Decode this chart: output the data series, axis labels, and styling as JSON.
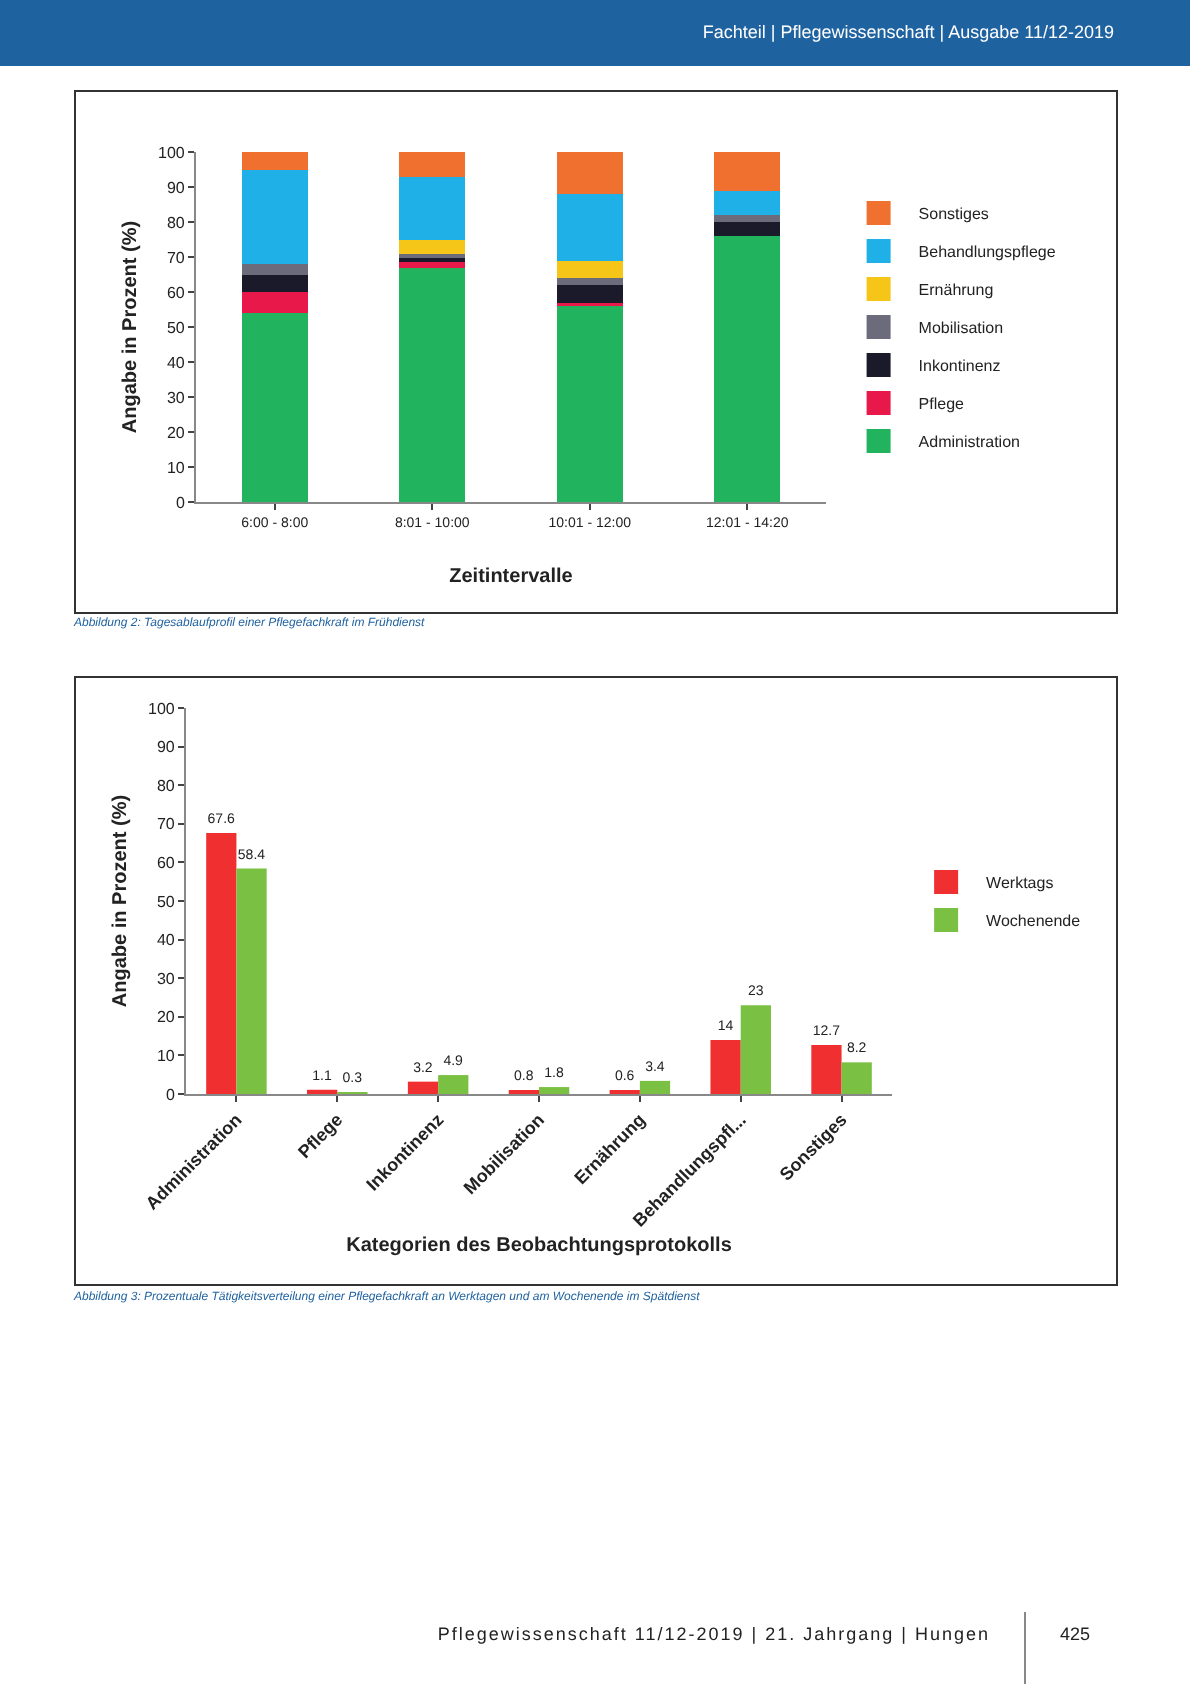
{
  "chart_data": [
    {
      "type": "bar",
      "stacked": true,
      "xlabel": "Zeitintervalle",
      "ylabel": "Angabe in Prozent (%)",
      "categories": [
        "6:00 - 8:00",
        "8:01 - 10:00",
        "10:01 - 12:00",
        "12:01 - 14:20"
      ],
      "series": [
        {
          "name": "Administration",
          "color": "#22b35e",
          "values": [
            54,
            67,
            56,
            76
          ]
        },
        {
          "name": "Pflege",
          "color": "#e8194a",
          "values": [
            6,
            2,
            1,
            0
          ]
        },
        {
          "name": "Inkontinenz",
          "color": "#1a1a2a",
          "values": [
            5,
            1,
            5,
            4
          ]
        },
        {
          "name": "Mobilisation",
          "color": "#6b6b7b",
          "values": [
            3,
            1,
            2,
            2
          ]
        },
        {
          "name": "Ernährung",
          "color": "#f5c518",
          "values": [
            0,
            4,
            5,
            0
          ]
        },
        {
          "name": "Behandlungspflege",
          "color": "#1fb0e8",
          "values": [
            27,
            18,
            19,
            7
          ]
        },
        {
          "name": "Sonstiges",
          "color": "#f07030",
          "values": [
            5,
            7,
            12,
            11
          ]
        }
      ],
      "ylim": [
        0,
        100
      ],
      "yticks": [
        0,
        10,
        20,
        30,
        40,
        50,
        60,
        70,
        80,
        90,
        100
      ],
      "grid": false,
      "legend": "right",
      "annotations": [
        "Fachteil | Pflegewissenschaft | Ausgabe 11/12-2019",
        "Abbildung 2: Tagesablaufprofil einer Pflegefachkraft im Frühdienst"
      ]
    },
    {
      "type": "bar",
      "xlabel": "Kategorien des Beobachtungsprotokolls",
      "ylabel": "Angabe in Prozent (%)",
      "categories": [
        "Administration",
        "Pflege",
        "Inkontinenz",
        "Mobilisation",
        "Ernährung",
        "Behandlungspfl...",
        "Sonstiges"
      ],
      "series": [
        {
          "name": "Werktags",
          "color": "#f03030",
          "values": [
            67.6,
            1.1,
            3.2,
            0.8,
            0.6,
            14,
            12.7
          ]
        },
        {
          "name": "Wochenende",
          "color": "#7ac143",
          "values": [
            58.4,
            0.3,
            4.9,
            1.8,
            3.4,
            23,
            8.2
          ]
        }
      ],
      "ylim": [
        0,
        100
      ],
      "yticks": [
        0,
        10,
        20,
        30,
        40,
        50,
        60,
        70,
        80,
        90,
        100
      ],
      "grid": false,
      "legend": "right",
      "data_labels": true,
      "annotations": [
        "Abbildung 3: Prozentuale Tätigkeitsverteilung einer Pflegefachkraft an Werktagen und am Wochenende im Spätdienst",
        "Pflegewissenschaft 11/12-2019 | 21. Jahrgang | Hungen",
        "425"
      ]
    }
  ]
}
